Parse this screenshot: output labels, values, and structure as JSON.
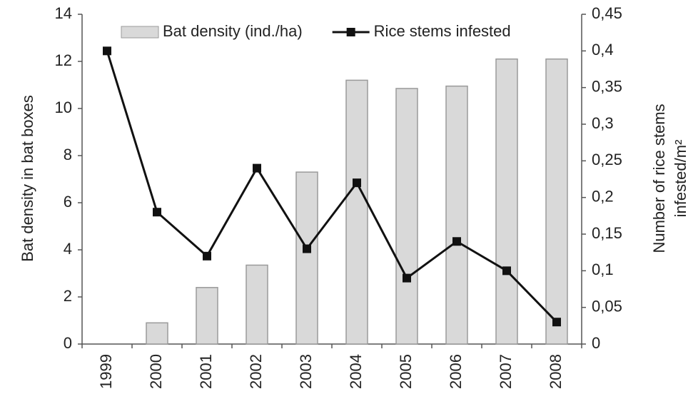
{
  "chart_data": {
    "type": "bar-line",
    "categories": [
      "1999",
      "2000",
      "2001",
      "2002",
      "2003",
      "2004",
      "2005",
      "2006",
      "2007",
      "2008"
    ],
    "series": [
      {
        "name": "Bat density (ind./ha)",
        "type": "bar",
        "color": "#d9d9d9",
        "values": [
          0,
          0.9,
          2.4,
          3.35,
          7.3,
          11.2,
          10.85,
          10.95,
          12.1,
          12.1
        ]
      },
      {
        "name": "Rice stems infested",
        "type": "line",
        "axis": "y2",
        "color": "#111111",
        "values": [
          0.4,
          0.18,
          0.12,
          0.24,
          0.13,
          0.22,
          0.09,
          0.14,
          0.1,
          0.03
        ]
      }
    ],
    "ylabel": "Bat density in bat boxes",
    "y2label": [
      "Number of rice stems",
      "infested/m²"
    ],
    "ylim": [
      0,
      14
    ],
    "yticks": [
      0,
      2,
      4,
      6,
      8,
      10,
      12,
      14
    ],
    "y2lim": [
      0,
      0.45
    ],
    "y2ticks": [
      0,
      {
        "value": 0.05,
        "label": "0,05"
      },
      {
        "value": 0.1,
        "label": "0,1"
      },
      {
        "value": 0.15,
        "label": "0,15"
      },
      {
        "value": 0.2,
        "label": "0,2"
      },
      {
        "value": 0.25,
        "label": "0,25"
      },
      {
        "value": 0.3,
        "label": "0,3"
      },
      {
        "value": 0.35,
        "label": "0,35"
      },
      {
        "value": 0.4,
        "label": "0,4"
      },
      {
        "value": 0.45,
        "label": "0,45"
      }
    ],
    "legend": "top"
  }
}
